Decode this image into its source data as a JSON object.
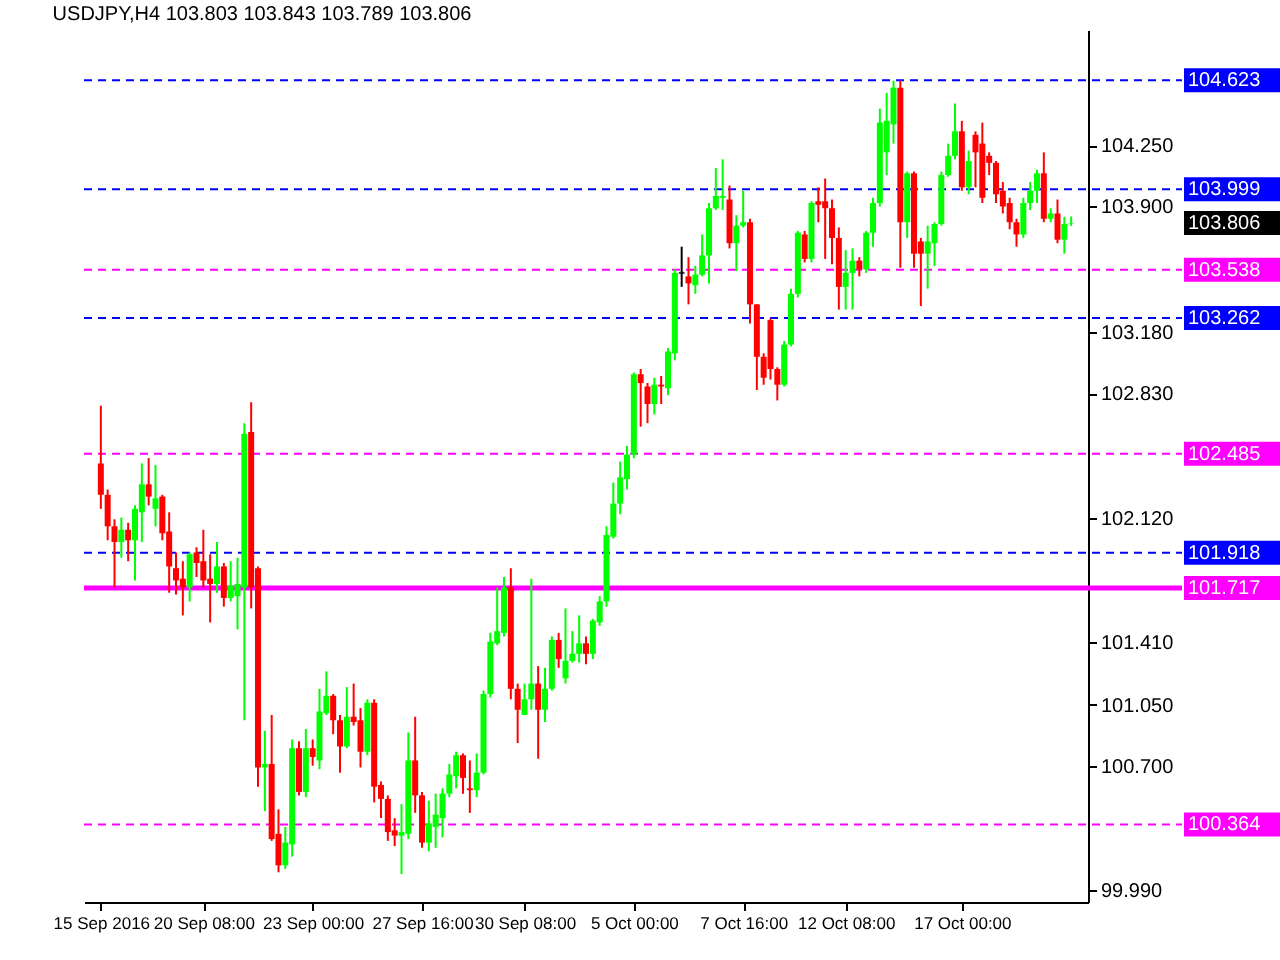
{
  "chart_data": {
    "type": "candlestick",
    "title": "USDJPY,H4  103.803 103.843 103.789 103.806",
    "categories": [
      "15 Sep 2016",
      null,
      null,
      null,
      null,
      null,
      null,
      null,
      null,
      null,
      null,
      null,
      null,
      null,
      null,
      "20 Sep 08:00",
      null,
      null,
      null,
      null,
      null,
      null,
      null,
      null,
      null,
      null,
      null,
      null,
      null,
      null,
      null,
      "23 Sep 00:00",
      null,
      null,
      null,
      null,
      null,
      null,
      null,
      null,
      null,
      null,
      null,
      null,
      null,
      null,
      null,
      "27 Sep 16:00",
      null,
      null,
      null,
      null,
      null,
      null,
      null,
      null,
      null,
      null,
      null,
      null,
      null,
      null,
      "30 Sep 08:00",
      null,
      null,
      null,
      null,
      null,
      null,
      null,
      null,
      null,
      null,
      null,
      null,
      null,
      null,
      null,
      "5 Oct 00:00",
      null,
      null,
      null,
      null,
      null,
      null,
      null,
      null,
      null,
      null,
      null,
      null,
      null,
      null,
      null,
      "7 Oct 16:00",
      null,
      null,
      null,
      null,
      null,
      null,
      null,
      null,
      null,
      null,
      null,
      null,
      null,
      null,
      "12 Oct 08:00",
      null,
      null,
      null,
      null,
      null,
      null,
      null,
      null,
      null,
      null,
      null,
      null,
      null,
      null,
      null,
      null,
      "17 Oct 00:00",
      null,
      null,
      null,
      null,
      null,
      null,
      null,
      null,
      null,
      null,
      null,
      null,
      null,
      null,
      null,
      null
    ],
    "ohlc": [
      [
        102.43,
        102.76,
        102.17,
        102.25
      ],
      [
        102.25,
        102.28,
        101.99,
        102.07
      ],
      [
        102.07,
        102.11,
        101.72,
        101.98
      ],
      [
        101.98,
        102.12,
        101.89,
        102.05
      ],
      [
        102.05,
        102.09,
        101.87,
        101.99
      ],
      [
        101.99,
        102.19,
        101.76,
        102.17
      ],
      [
        102.15,
        102.43,
        101.98,
        102.31
      ],
      [
        102.31,
        102.46,
        102.19,
        102.24
      ],
      [
        102.17,
        102.42,
        102.07,
        102.23
      ],
      [
        102.24,
        102.25,
        101.99,
        102.03
      ],
      [
        102.04,
        102.15,
        101.69,
        101.84
      ],
      [
        101.83,
        101.92,
        101.68,
        101.76
      ],
      [
        101.77,
        101.87,
        101.56,
        101.72
      ],
      [
        101.72,
        101.92,
        101.64,
        101.91
      ],
      [
        101.92,
        101.95,
        101.78,
        101.86
      ],
      [
        101.87,
        102.05,
        101.72,
        101.76
      ],
      [
        101.77,
        101.91,
        101.52,
        101.74
      ],
      [
        101.74,
        101.98,
        101.69,
        101.84
      ],
      [
        101.84,
        101.86,
        101.61,
        101.66
      ],
      [
        101.66,
        101.87,
        101.64,
        101.73
      ],
      [
        101.67,
        101.89,
        101.48,
        101.74
      ],
      [
        101.72,
        102.66,
        100.96,
        102.6
      ],
      [
        102.61,
        102.78,
        101.6,
        101.72
      ],
      [
        101.83,
        101.84,
        100.58,
        100.69
      ],
      [
        100.69,
        100.9,
        100.44,
        100.71
      ],
      [
        100.71,
        100.99,
        100.27,
        100.28
      ],
      [
        100.31,
        100.45,
        100.09,
        100.13
      ],
      [
        100.13,
        100.35,
        100.11,
        100.26
      ],
      [
        100.25,
        100.85,
        100.18,
        100.8
      ],
      [
        100.8,
        100.84,
        100.53,
        100.55
      ],
      [
        100.55,
        100.91,
        100.52,
        100.8
      ],
      [
        100.8,
        100.85,
        100.7,
        100.75
      ],
      [
        100.73,
        101.14,
        100.68,
        101.01
      ],
      [
        101.0,
        101.24,
        100.99,
        101.1
      ],
      [
        101.1,
        101.11,
        100.88,
        100.96
      ],
      [
        100.96,
        100.99,
        100.66,
        100.81
      ],
      [
        100.81,
        101.15,
        100.8,
        100.98
      ],
      [
        100.98,
        101.17,
        100.93,
        100.95
      ],
      [
        100.96,
        101.03,
        100.69,
        100.78
      ],
      [
        100.78,
        101.08,
        100.76,
        101.06
      ],
      [
        101.06,
        101.08,
        100.49,
        100.58
      ],
      [
        100.59,
        100.61,
        100.4,
        100.51
      ],
      [
        100.51,
        100.53,
        100.27,
        100.32
      ],
      [
        100.33,
        100.4,
        100.24,
        100.3
      ],
      [
        100.3,
        100.48,
        100.08,
        100.32
      ],
      [
        100.31,
        100.89,
        100.28,
        100.73
      ],
      [
        100.73,
        100.98,
        100.43,
        100.53
      ],
      [
        100.53,
        100.55,
        100.23,
        100.26
      ],
      [
        100.26,
        100.5,
        100.21,
        100.37
      ],
      [
        100.35,
        100.54,
        100.23,
        100.42
      ],
      [
        100.4,
        100.57,
        100.29,
        100.54
      ],
      [
        100.54,
        100.71,
        100.52,
        100.65
      ],
      [
        100.64,
        100.78,
        100.57,
        100.76
      ],
      [
        100.76,
        100.77,
        100.54,
        100.63
      ],
      [
        100.57,
        100.73,
        100.43,
        100.56
      ],
      [
        100.56,
        100.77,
        100.52,
        100.66
      ],
      [
        100.66,
        101.13,
        100.65,
        101.11
      ],
      [
        101.11,
        101.46,
        101.09,
        101.41
      ],
      [
        101.4,
        101.72,
        101.39,
        101.47
      ],
      [
        101.46,
        101.78,
        101.44,
        101.72
      ],
      [
        101.72,
        101.83,
        101.08,
        101.14
      ],
      [
        101.14,
        101.17,
        100.83,
        101.02
      ],
      [
        100.99,
        101.17,
        100.99,
        101.08
      ],
      [
        101.08,
        101.77,
        101.02,
        101.17
      ],
      [
        101.17,
        101.27,
        100.74,
        101.02
      ],
      [
        101.02,
        101.26,
        100.95,
        101.14
      ],
      [
        101.14,
        101.44,
        101.13,
        101.42
      ],
      [
        101.42,
        101.46,
        101.26,
        101.31
      ],
      [
        101.2,
        101.6,
        101.17,
        101.3
      ],
      [
        101.3,
        101.47,
        101.29,
        101.34
      ],
      [
        101.34,
        101.56,
        101.29,
        101.4
      ],
      [
        101.4,
        101.44,
        101.28,
        101.34
      ],
      [
        101.34,
        101.54,
        101.31,
        101.53
      ],
      [
        101.52,
        101.67,
        101.5,
        101.64
      ],
      [
        101.64,
        102.07,
        101.61,
        102.02
      ],
      [
        102.01,
        102.32,
        102.0,
        102.2
      ],
      [
        102.2,
        102.44,
        102.14,
        102.35
      ],
      [
        102.34,
        102.53,
        102.28,
        102.48
      ],
      [
        102.48,
        102.95,
        102.46,
        102.94
      ],
      [
        102.94,
        102.97,
        102.64,
        102.89
      ],
      [
        102.87,
        102.89,
        102.66,
        102.77
      ],
      [
        102.77,
        102.92,
        102.71,
        102.88
      ],
      [
        102.88,
        102.93,
        102.77,
        102.87
      ],
      [
        102.86,
        103.09,
        102.82,
        103.07
      ],
      [
        103.06,
        103.54,
        103.02,
        103.52
      ],
      [
        103.52,
        103.67,
        103.44,
        103.52
      ],
      [
        103.5,
        103.61,
        103.34,
        103.46
      ],
      [
        103.45,
        103.56,
        103.4,
        103.51
      ],
      [
        103.51,
        103.74,
        103.5,
        103.62
      ],
      [
        103.62,
        103.92,
        103.46,
        103.89
      ],
      [
        103.89,
        104.12,
        103.88,
        103.96
      ],
      [
        103.95,
        104.17,
        103.88,
        103.96
      ],
      [
        103.94,
        104.02,
        103.66,
        103.69
      ],
      [
        103.69,
        103.85,
        103.53,
        103.79
      ],
      [
        103.79,
        103.99,
        103.78,
        103.81
      ],
      [
        103.81,
        103.83,
        103.23,
        103.34
      ],
      [
        103.34,
        103.34,
        102.85,
        103.04
      ],
      [
        103.04,
        103.06,
        102.88,
        102.92
      ],
      [
        103.25,
        103.26,
        102.91,
        102.97
      ],
      [
        102.97,
        102.98,
        102.79,
        102.88
      ],
      [
        102.88,
        103.13,
        102.87,
        103.11
      ],
      [
        103.11,
        103.43,
        103.1,
        103.4
      ],
      [
        103.4,
        103.76,
        103.38,
        103.75
      ],
      [
        103.74,
        103.76,
        103.58,
        103.6
      ],
      [
        103.6,
        103.93,
        103.58,
        103.92
      ],
      [
        103.93,
        104.01,
        103.81,
        103.91
      ],
      [
        103.93,
        104.06,
        103.6,
        103.89
      ],
      [
        103.89,
        103.94,
        103.57,
        103.72
      ],
      [
        103.72,
        103.78,
        103.31,
        103.44
      ],
      [
        103.44,
        103.65,
        103.31,
        103.52
      ],
      [
        103.52,
        103.66,
        103.31,
        103.59
      ],
      [
        103.59,
        103.61,
        103.5,
        103.54
      ],
      [
        103.54,
        103.76,
        103.52,
        103.75
      ],
      [
        103.75,
        103.95,
        103.67,
        103.92
      ],
      [
        103.92,
        104.46,
        103.9,
        104.38
      ],
      [
        104.21,
        104.55,
        104.08,
        104.39
      ],
      [
        104.37,
        104.62,
        104.26,
        104.58
      ],
      [
        104.58,
        104.62,
        103.55,
        103.81
      ],
      [
        103.81,
        104.1,
        103.72,
        104.09
      ],
      [
        104.09,
        104.1,
        103.55,
        103.63
      ],
      [
        103.7,
        103.72,
        103.33,
        103.63
      ],
      [
        103.63,
        103.79,
        103.43,
        103.7
      ],
      [
        103.69,
        103.81,
        103.56,
        103.8
      ],
      [
        103.8,
        104.1,
        103.79,
        104.08
      ],
      [
        104.08,
        104.26,
        104.07,
        104.19
      ],
      [
        104.19,
        104.49,
        104.17,
        104.33
      ],
      [
        104.33,
        104.39,
        103.99,
        104.01
      ],
      [
        104.01,
        104.22,
        103.97,
        104.16
      ],
      [
        104.31,
        104.33,
        104.01,
        104.21
      ],
      [
        104.26,
        104.38,
        103.92,
        103.95
      ],
      [
        104.19,
        104.21,
        104.08,
        104.15
      ],
      [
        104.15,
        104.16,
        103.92,
        103.97
      ],
      [
        103.99,
        104.04,
        103.86,
        103.9
      ],
      [
        103.92,
        103.95,
        103.77,
        103.81
      ],
      [
        103.81,
        103.83,
        103.67,
        103.74
      ],
      [
        103.74,
        103.95,
        103.72,
        103.92
      ],
      [
        103.92,
        104.04,
        103.88,
        103.99
      ],
      [
        103.99,
        104.11,
        103.92,
        104.09
      ],
      [
        104.09,
        104.21,
        103.81,
        103.83
      ],
      [
        103.83,
        103.89,
        103.81,
        103.86
      ],
      [
        103.86,
        103.94,
        103.69,
        103.71
      ],
      [
        103.71,
        103.84,
        103.63,
        103.8
      ],
      [
        103.803,
        103.843,
        103.789,
        103.806
      ]
    ],
    "colors": [
      "#ff0000",
      "#ff0000",
      "#ff0000",
      "#00ff00",
      "#ff0000",
      "#00ff00",
      "#00ff00",
      "#ff0000",
      "#00ff00",
      "#ff0000",
      "#ff0000",
      "#ff0000",
      "#ff0000",
      "#00ff00",
      "#ff0000",
      "#ff0000",
      "#ff0000",
      "#00ff00",
      "#ff0000",
      "#00ff00",
      "#00ff00",
      "#00ff00",
      "#ff0000",
      "#ff0000",
      "#00ff00",
      "#ff0000",
      "#ff0000",
      "#00ff00",
      "#00ff00",
      "#ff0000",
      "#00ff00",
      "#ff0000",
      "#00ff00",
      "#00ff00",
      "#ff0000",
      "#ff0000",
      "#00ff00",
      "#ff0000",
      "#ff0000",
      "#00ff00",
      "#ff0000",
      "#ff0000",
      "#ff0000",
      "#ff0000",
      "#00ff00",
      "#00ff00",
      "#ff0000",
      "#ff0000",
      "#00ff00",
      "#00ff00",
      "#00ff00",
      "#00ff00",
      "#00ff00",
      "#ff0000",
      "#ff0000",
      "#00ff00",
      "#00ff00",
      "#00ff00",
      "#00ff00",
      "#00ff00",
      "#ff0000",
      "#ff0000",
      "#00ff00",
      "#00ff00",
      "#ff0000",
      "#00ff00",
      "#00ff00",
      "#ff0000",
      "#00ff00",
      "#00ff00",
      "#00ff00",
      "#ff0000",
      "#00ff00",
      "#00ff00",
      "#00ff00",
      "#00ff00",
      "#00ff00",
      "#00ff00",
      "#00ff00",
      "#ff0000",
      "#ff0000",
      "#00ff00",
      "#ff0000",
      "#00ff00",
      "#00ff00",
      "#000000",
      "#ff0000",
      "#00ff00",
      "#00ff00",
      "#00ff00",
      "#00ff00",
      "#00ff00",
      "#ff0000",
      "#00ff00",
      "#00ff00",
      "#ff0000",
      "#ff0000",
      "#ff0000",
      "#ff0000",
      "#ff0000",
      "#00ff00",
      "#00ff00",
      "#00ff00",
      "#ff0000",
      "#00ff00",
      "#ff0000",
      "#ff0000",
      "#ff0000",
      "#ff0000",
      "#00ff00",
      "#00ff00",
      "#ff0000",
      "#00ff00",
      "#00ff00",
      "#00ff00",
      "#00ff00",
      "#00ff00",
      "#ff0000",
      "#00ff00",
      "#ff0000",
      "#ff0000",
      "#00ff00",
      "#00ff00",
      "#00ff00",
      "#00ff00",
      "#00ff00",
      "#ff0000",
      "#00ff00",
      "#ff0000",
      "#ff0000",
      "#ff0000",
      "#ff0000",
      "#ff0000",
      "#ff0000",
      "#ff0000",
      "#00ff00",
      "#00ff00",
      "#00ff00",
      "#ff0000",
      "#00ff00",
      "#ff0000",
      "#00ff00",
      "#00ff00"
    ],
    "ylim": [
      99.92,
      104.91
    ],
    "yticks": [
      {
        "value": 104.25,
        "label": "104.250"
      },
      {
        "value": 103.9,
        "label": "103.900"
      },
      {
        "value": 103.18,
        "label": "103.180"
      },
      {
        "value": 102.83,
        "label": "102.830"
      },
      {
        "value": 102.12,
        "label": "102.120"
      },
      {
        "value": 101.41,
        "label": "101.410"
      },
      {
        "value": 101.05,
        "label": "101.050"
      },
      {
        "value": 100.7,
        "label": "100.700"
      },
      {
        "value": 99.99,
        "label": "99.990"
      }
    ],
    "ref_lines": [
      {
        "axis": "y",
        "value": 104.623,
        "label": "104.623",
        "color": "#0000ff",
        "line_style": "dashed"
      },
      {
        "axis": "y",
        "value": 103.999,
        "label": "103.999",
        "color": "#0000ff",
        "line_style": "dashed"
      },
      {
        "axis": "y",
        "value": 103.538,
        "label": "103.538",
        "color": "#ff00ff",
        "line_style": "dashed"
      },
      {
        "axis": "y",
        "value": 103.262,
        "label": "103.262",
        "color": "#0000ff",
        "line_style": "dashed"
      },
      {
        "axis": "y",
        "value": 102.485,
        "label": "102.485",
        "color": "#ff00ff",
        "line_style": "dashed"
      },
      {
        "axis": "y",
        "value": 101.918,
        "label": "101.918",
        "color": "#0000ff",
        "line_style": "dashed"
      },
      {
        "axis": "y",
        "value": 101.717,
        "label": "101.717",
        "color": "#ff00ff",
        "line_style": "solid"
      },
      {
        "axis": "y",
        "value": 100.364,
        "label": "100.364",
        "color": "#ff00ff",
        "line_style": "dashed"
      }
    ],
    "annotations": [
      "103.806"
    ]
  }
}
